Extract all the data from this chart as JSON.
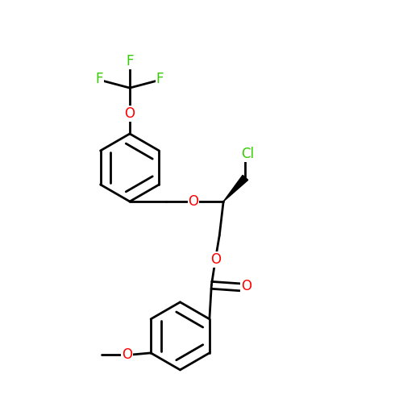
{
  "background_color": "#ffffff",
  "bond_color": "#000000",
  "atom_colors": {
    "O": "#ff0000",
    "F": "#33cc00",
    "Cl": "#33cc00",
    "C": "#000000"
  },
  "figsize": [
    5.0,
    5.0
  ],
  "dpi": 100
}
